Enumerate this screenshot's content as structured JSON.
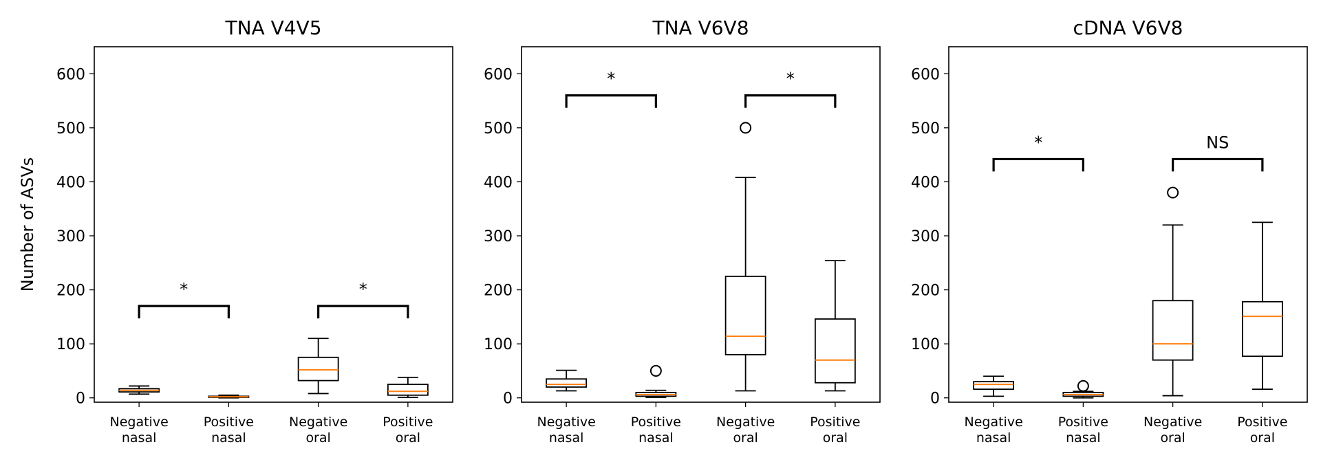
{
  "chart_data": [
    {
      "type": "box",
      "title": "TNA V4V5",
      "ylabel": "Number of ASVs",
      "ylim": [
        -8,
        650
      ],
      "yticks": [
        0,
        100,
        200,
        300,
        400,
        500,
        600
      ],
      "categories": [
        [
          "Negative",
          "nasal"
        ],
        [
          "Positive",
          "nasal"
        ],
        [
          "Negative",
          "oral"
        ],
        [
          "Positive",
          "oral"
        ]
      ],
      "boxes": [
        {
          "whislo": 7,
          "q1": 11,
          "med": 14,
          "q3": 17,
          "whishi": 22,
          "fliers": []
        },
        {
          "whislo": 0,
          "q1": 1,
          "med": 2,
          "q3": 3,
          "whishi": 5,
          "fliers": []
        },
        {
          "whislo": 8,
          "q1": 32,
          "med": 52,
          "q3": 75,
          "whishi": 110,
          "fliers": []
        },
        {
          "whislo": 1,
          "q1": 5,
          "med": 12,
          "q3": 25,
          "whishi": 38,
          "fliers": []
        }
      ],
      "comparisons": [
        {
          "pair": [
            0,
            1
          ],
          "y": 170,
          "label": "*"
        },
        {
          "pair": [
            2,
            3
          ],
          "y": 170,
          "label": "*"
        }
      ]
    },
    {
      "type": "box",
      "title": "TNA V6V8",
      "ylabel": "",
      "ylim": [
        -8,
        650
      ],
      "yticks": [
        0,
        100,
        200,
        300,
        400,
        500,
        600
      ],
      "categories": [
        [
          "Negative",
          "nasal"
        ],
        [
          "Positive",
          "nasal"
        ],
        [
          "Negative",
          "oral"
        ],
        [
          "Positive",
          "oral"
        ]
      ],
      "boxes": [
        {
          "whislo": 13,
          "q1": 20,
          "med": 25,
          "q3": 35,
          "whishi": 51,
          "fliers": []
        },
        {
          "whislo": 1,
          "q1": 3,
          "med": 6,
          "q3": 10,
          "whishi": 14,
          "fliers": [
            50
          ]
        },
        {
          "whislo": 13,
          "q1": 80,
          "med": 114,
          "q3": 225,
          "whishi": 408,
          "fliers": [
            500
          ]
        },
        {
          "whislo": 13,
          "q1": 28,
          "med": 70,
          "q3": 146,
          "whishi": 254,
          "fliers": []
        }
      ],
      "comparisons": [
        {
          "pair": [
            0,
            1
          ],
          "y": 560,
          "label": "*"
        },
        {
          "pair": [
            2,
            3
          ],
          "y": 560,
          "label": "*"
        }
      ]
    },
    {
      "type": "box",
      "title": "cDNA V6V8",
      "ylabel": "",
      "ylim": [
        -8,
        650
      ],
      "yticks": [
        0,
        100,
        200,
        300,
        400,
        500,
        600
      ],
      "categories": [
        [
          "Negative",
          "nasal"
        ],
        [
          "Positive",
          "nasal"
        ],
        [
          "Negative",
          "oral"
        ],
        [
          "Positive",
          "oral"
        ]
      ],
      "boxes": [
        {
          "whislo": 3,
          "q1": 16,
          "med": 25,
          "q3": 30,
          "whishi": 40,
          "fliers": []
        },
        {
          "whislo": 0,
          "q1": 3,
          "med": 6,
          "q3": 10,
          "whishi": 12,
          "fliers": [
            22
          ]
        },
        {
          "whislo": 4,
          "q1": 70,
          "med": 100,
          "q3": 180,
          "whishi": 320,
          "fliers": [
            380
          ]
        },
        {
          "whislo": 16,
          "q1": 77,
          "med": 151,
          "q3": 178,
          "whishi": 325,
          "fliers": []
        }
      ],
      "comparisons": [
        {
          "pair": [
            0,
            1
          ],
          "y": 442,
          "label": "*"
        },
        {
          "pair": [
            2,
            3
          ],
          "y": 442,
          "label": "NS"
        }
      ]
    }
  ]
}
